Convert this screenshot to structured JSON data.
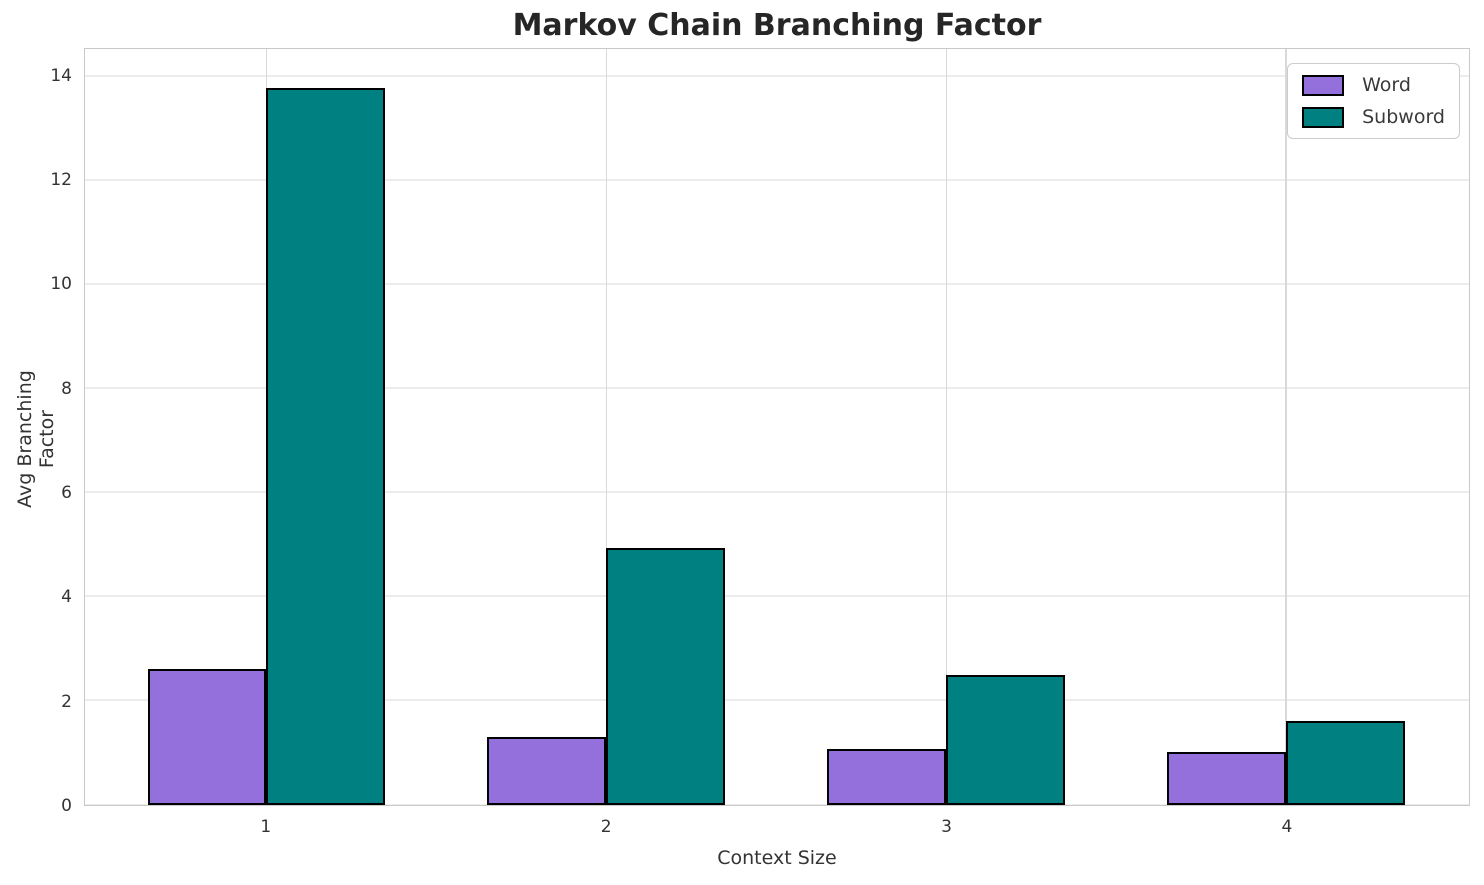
{
  "chart_data": {
    "type": "bar",
    "title": "Markov Chain Branching Factor",
    "xlabel": "Context Size",
    "ylabel": "Avg Branching Factor",
    "categories": [
      "1",
      "2",
      "3",
      "4"
    ],
    "series": [
      {
        "name": "Word",
        "color": "#9370DB",
        "values": [
          2.61,
          1.3,
          1.08,
          1.02
        ]
      },
      {
        "name": "Subword",
        "color": "#008080",
        "values": [
          13.78,
          4.94,
          2.5,
          1.61
        ]
      }
    ],
    "bar_width": 0.35,
    "bar_edge_color": "#000000",
    "xlim": [
      0.466,
      4.538
    ],
    "ylim": [
      0,
      14.53
    ],
    "yticks": [
      0,
      2,
      4,
      6,
      8,
      10,
      12,
      14
    ],
    "grid": true,
    "legend_position": "upper right"
  }
}
